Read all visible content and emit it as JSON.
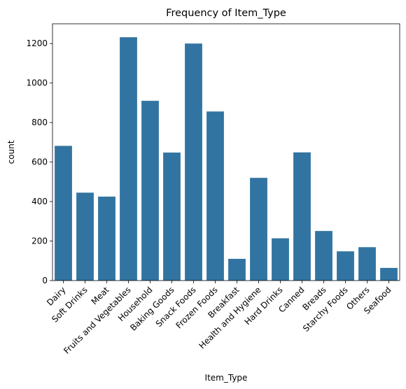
{
  "chart_data": {
    "type": "bar",
    "title": "Frequency of Item_Type",
    "xlabel": "Item_Type",
    "ylabel": "count",
    "categories": [
      "Dairy",
      "Soft Drinks",
      "Meat",
      "Fruits and Vegetables",
      "Household",
      "Baking Goods",
      "Snack Foods",
      "Frozen Foods",
      "Breakfast",
      "Health and Hygiene",
      "Hard Drinks",
      "Canned",
      "Breads",
      "Starchy Foods",
      "Others",
      "Seafood"
    ],
    "values": [
      682,
      445,
      425,
      1232,
      910,
      648,
      1200,
      856,
      110,
      520,
      214,
      649,
      251,
      148,
      169,
      64
    ],
    "ylim": [
      0,
      1300
    ],
    "yticks": [
      0,
      200,
      400,
      600,
      800,
      1000,
      1200
    ],
    "grid": false,
    "bar_color": "#3274a1"
  }
}
